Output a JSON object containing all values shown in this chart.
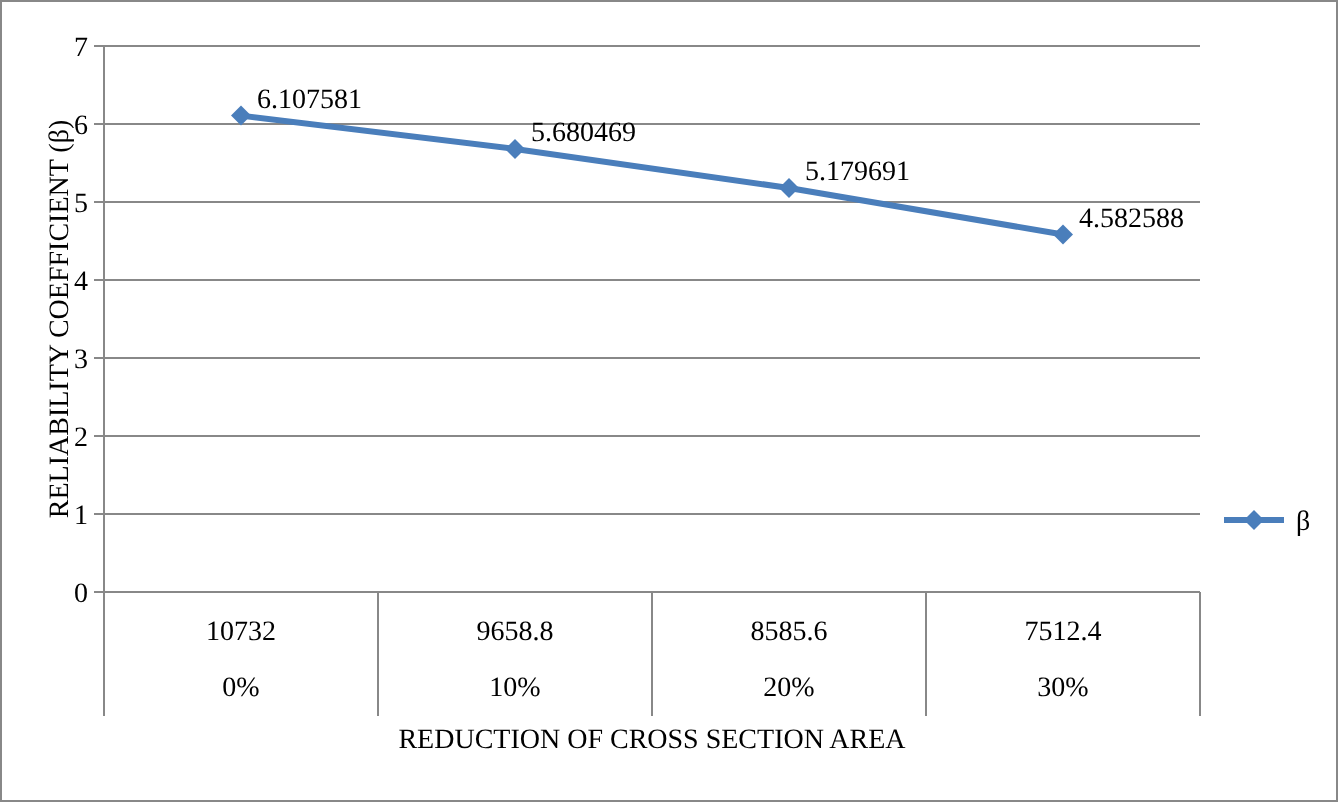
{
  "chart_data": {
    "type": "line",
    "xlabel": "REDUCTION OF CROSS SECTION AREA",
    "ylabel": "RELIABILITY COEFFICIENT (β)",
    "categories": [
      "10732\n0%",
      "9658.8\n10%",
      "8585.6\n20%",
      "7512.4\n30%"
    ],
    "series": [
      {
        "name": "β",
        "color": "#4a7ebb",
        "values": [
          6.107581,
          5.680469,
          5.179691,
          4.582588
        ]
      }
    ],
    "ylim": [
      0,
      7
    ],
    "yticks": [
      0,
      1,
      2,
      3,
      4,
      5,
      6,
      7
    ],
    "grid": "y",
    "legend": "right",
    "marker": "diamond",
    "data_labels": true
  }
}
